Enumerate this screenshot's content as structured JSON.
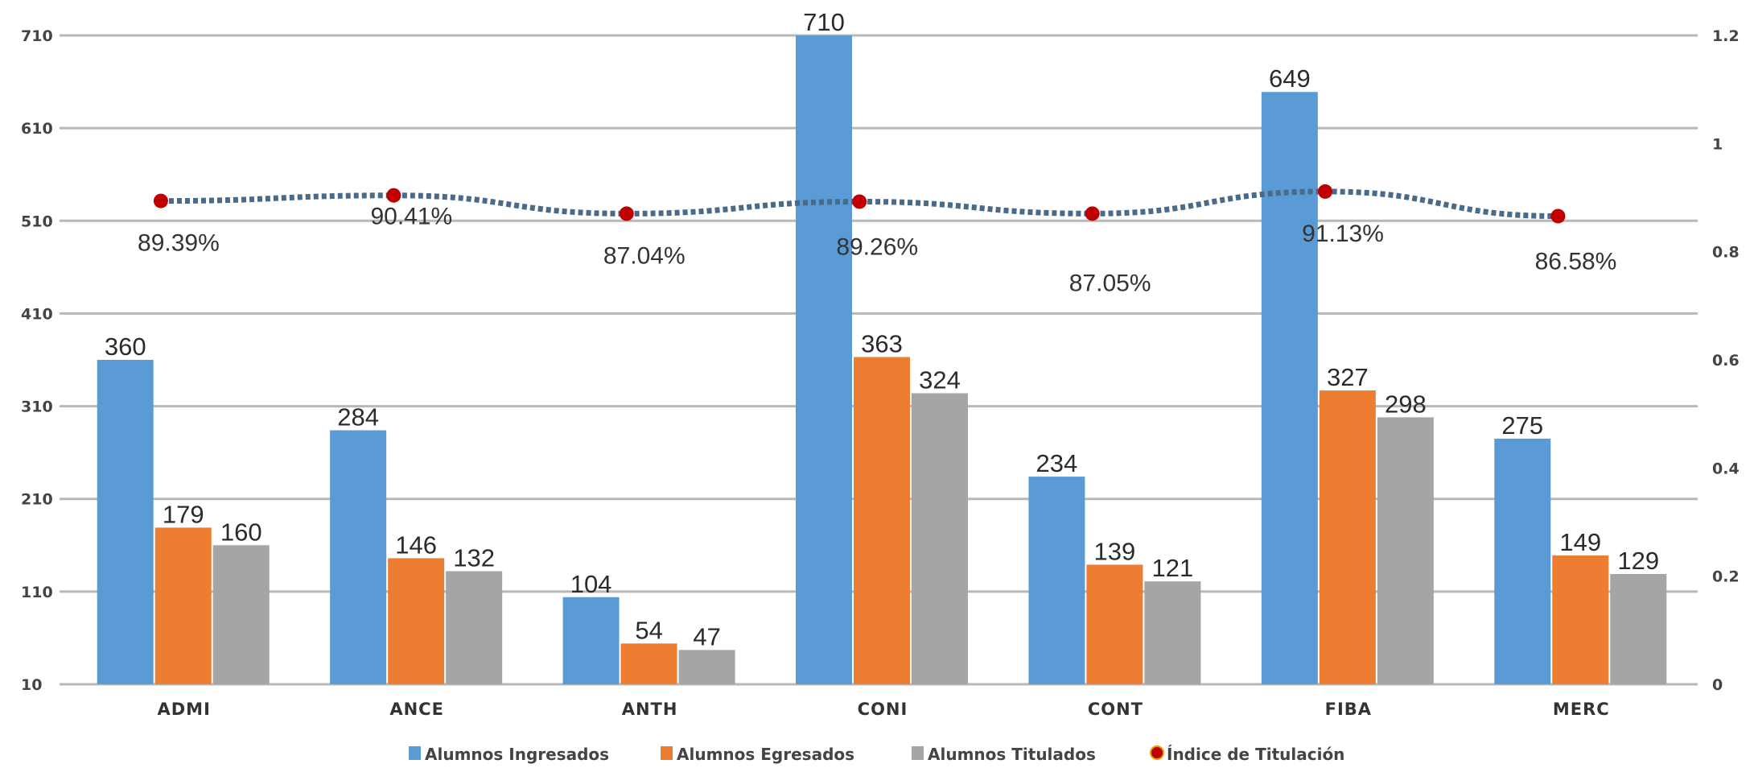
{
  "chart_data": {
    "type": "bar",
    "categories": [
      "ADMI",
      "ANCE",
      "ANTH",
      "CONI",
      "CONT",
      "FIBA",
      "MERC"
    ],
    "series": [
      {
        "name": "Alumnos Ingresados",
        "values": [
          360,
          284,
          104,
          710,
          234,
          649,
          275
        ],
        "color": "#5b9bd5"
      },
      {
        "name": "Alumnos Egresados",
        "values": [
          179,
          146,
          54,
          363,
          139,
          327,
          149
        ],
        "color": "#ed7d31"
      },
      {
        "name": "Alumnos Titulados",
        "values": [
          160,
          132,
          47,
          324,
          121,
          298,
          129
        ],
        "color": "#a5a5a5"
      }
    ],
    "line_series": {
      "name": "Índice de Titulación",
      "values": [
        0.8939,
        0.9041,
        0.8704,
        0.8926,
        0.8705,
        0.9113,
        0.8658
      ],
      "labels": [
        "89.39%",
        "90.41%",
        "87.04%",
        "89.26%",
        "87.05%",
        "91.13%",
        "86.58%"
      ],
      "color": "#c00000",
      "line_color": "#4a6a8a",
      "axis": "right"
    },
    "left_axis": {
      "ticks": [
        "10",
        "110",
        "210",
        "310",
        "410",
        "510",
        "610",
        "710"
      ],
      "ylim": [
        10,
        710
      ]
    },
    "right_axis": {
      "ticks": [
        "0",
        "0.2",
        "0.4",
        "0.6",
        "0.8",
        "1",
        "1.2"
      ],
      "ylim": [
        0,
        1.2
      ]
    },
    "legend": {
      "position": "bottom",
      "items": [
        "Alumnos Ingresados",
        "Alumnos Egresados",
        "Alumnos Titulados",
        "Índice de Titulación"
      ]
    },
    "grid": true
  }
}
